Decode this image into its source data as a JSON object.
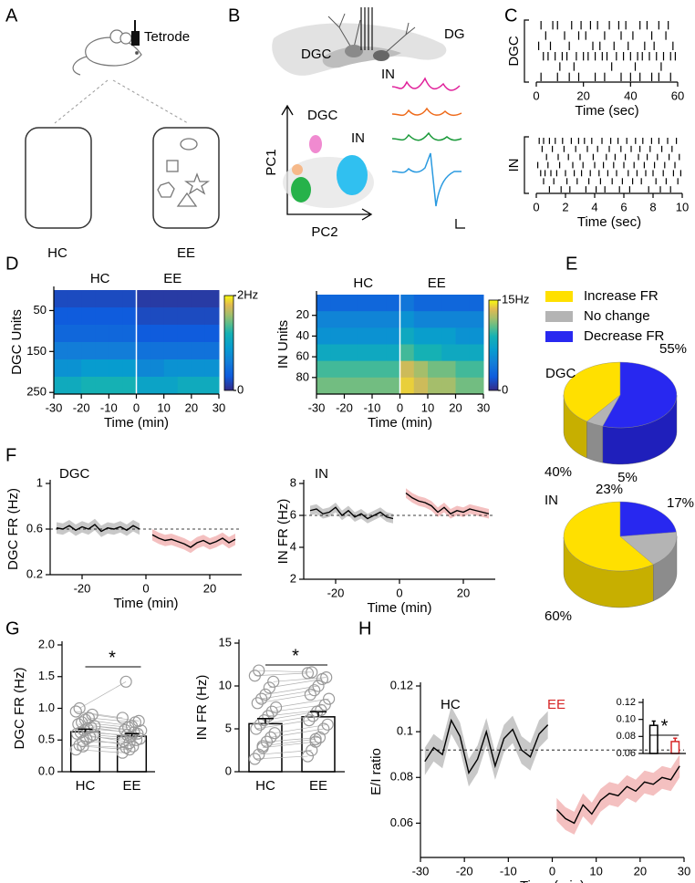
{
  "panel_labels": [
    "A",
    "B",
    "C",
    "D",
    "E",
    "F",
    "G",
    "H"
  ],
  "diagram_a": {
    "device": "Tetrode",
    "conditions": [
      "HC",
      "EE"
    ]
  },
  "diagram_b": {
    "regions": [
      "DGC",
      "DG",
      "IN"
    ],
    "clusters": [
      "DGC",
      "IN"
    ],
    "xlabel": "PC2",
    "ylabel": "PC1"
  },
  "chart_data": [
    {
      "type": "raster",
      "ylabel": "DGC",
      "xlabel": "Time (sec)",
      "xlim": [
        0,
        60
      ],
      "xticks": [
        0,
        20,
        40,
        60
      ],
      "color": "#000000",
      "rows": [
        [
          2,
          7,
          9,
          15,
          19,
          23,
          26,
          31,
          35,
          38,
          44,
          47,
          52,
          56
        ],
        [
          4,
          12,
          18,
          21,
          29,
          36,
          41,
          49,
          55
        ],
        [
          1,
          6,
          14,
          24,
          27,
          33,
          39,
          46,
          50,
          58
        ],
        [
          3,
          5,
          8,
          11,
          13,
          17,
          20,
          22,
          25,
          28,
          30,
          34,
          37,
          40,
          43,
          45,
          48,
          51,
          54,
          57,
          59
        ],
        [
          10,
          16,
          32,
          42,
          53
        ],
        [
          2,
          9,
          14,
          18,
          25,
          29,
          36,
          40,
          44,
          49,
          52,
          57
        ]
      ]
    },
    {
      "type": "raster",
      "ylabel": "IN",
      "xlabel": "Time (sec)",
      "xlim": [
        0,
        10
      ],
      "xticks": [
        0,
        2,
        4,
        6,
        8,
        10
      ],
      "color": "#000000",
      "rows": [
        [
          0.2,
          0.5,
          0.9,
          1.3,
          1.8,
          2.4,
          2.9,
          3.3,
          3.8,
          4.5,
          5.1,
          5.6,
          6.2,
          6.8,
          7.3,
          7.9,
          8.4,
          9.0,
          9.6
        ],
        [
          0.4,
          1.1,
          1.9,
          2.7,
          3.5,
          4.2,
          5.0,
          5.8,
          6.5,
          7.1,
          7.8,
          8.6,
          9.3
        ],
        [
          0.7,
          1.5,
          2.2,
          3.0,
          3.9,
          4.8,
          5.4,
          6.1,
          7.0,
          7.6,
          8.3,
          9.1,
          9.8
        ],
        [
          0.1,
          0.8,
          1.6,
          2.5,
          3.2,
          4.0,
          4.6,
          5.3,
          6.0,
          6.7,
          7.4,
          8.1,
          8.8,
          9.5
        ],
        [
          0.3,
          0.6,
          1.0,
          1.4,
          2.0,
          2.6,
          3.1,
          3.7,
          4.3,
          4.9,
          5.5,
          6.3,
          6.9,
          7.5,
          8.0,
          8.7,
          9.4,
          9.9
        ],
        [
          0.5,
          1.2,
          2.1,
          2.8,
          3.6,
          4.4,
          5.2,
          5.9,
          6.6,
          7.2,
          8.2,
          8.9,
          9.7
        ],
        [
          0.9,
          1.7,
          2.3,
          3.4,
          4.1,
          4.7,
          5.7,
          6.4,
          7.7,
          8.5,
          9.2
        ]
      ]
    },
    {
      "type": "heatmap",
      "columns": [
        "HC",
        "EE"
      ],
      "xlabel": "Time (min)",
      "ylabel": "DGC Units",
      "xlim": [
        -30,
        30
      ],
      "xticks": [
        -30,
        -20,
        -10,
        0,
        10,
        20,
        30
      ],
      "ylim": [
        254,
        0
      ],
      "yticks": [
        50,
        150,
        250
      ],
      "zlim": [
        0,
        2
      ],
      "zticks": [
        0,
        {
          "value": 2,
          "label": "2Hz"
        }
      ],
      "values": [
        [
          0.2,
          0.2,
          0.2,
          0.2,
          0.2,
          0.2,
          0.1,
          0.1,
          0.1,
          0.1,
          0.1,
          0.1
        ],
        [
          0.3,
          0.3,
          0.3,
          0.3,
          0.3,
          0.3,
          0.2,
          0.2,
          0.2,
          0.2,
          0.2,
          0.2
        ],
        [
          0.4,
          0.4,
          0.4,
          0.4,
          0.4,
          0.4,
          0.3,
          0.3,
          0.3,
          0.3,
          0.3,
          0.3
        ],
        [
          0.6,
          0.6,
          0.6,
          0.6,
          0.6,
          0.6,
          0.5,
          0.5,
          0.5,
          0.5,
          0.5,
          0.5
        ],
        [
          0.8,
          0.8,
          0.9,
          0.9,
          0.9,
          0.9,
          0.7,
          0.7,
          0.8,
          0.8,
          0.8,
          0.8
        ],
        [
          1.1,
          1.1,
          1.2,
          1.2,
          1.2,
          1.2,
          1.0,
          1.0,
          1.0,
          1.1,
          1.1,
          1.1
        ]
      ]
    },
    {
      "type": "heatmap",
      "columns": [
        "HC",
        "EE"
      ],
      "xlabel": "Time (min)",
      "ylabel": "IN Units",
      "xlim": [
        -30,
        30
      ],
      "xticks": [
        -30,
        -20,
        -10,
        0,
        10,
        20,
        30
      ],
      "ylim": [
        96,
        0
      ],
      "yticks": [
        20,
        40,
        60,
        80
      ],
      "zlim": [
        0,
        15
      ],
      "zticks": [
        0,
        {
          "value": 15,
          "label": "15Hz"
        }
      ],
      "values": [
        [
          3,
          3,
          3,
          3,
          3,
          3,
          4,
          3,
          3,
          3,
          3,
          3
        ],
        [
          5,
          5,
          5,
          5,
          5,
          5,
          6,
          5,
          5,
          5,
          5,
          5
        ],
        [
          6,
          6,
          6,
          6,
          6,
          6,
          8,
          7,
          7,
          7,
          6,
          6
        ],
        [
          8,
          8,
          8,
          8,
          8,
          8,
          10,
          9,
          9,
          8,
          8,
          8
        ],
        [
          10,
          10,
          10,
          10,
          10,
          10,
          13,
          12,
          11,
          11,
          10,
          10
        ],
        [
          11,
          11,
          11,
          11,
          11,
          11,
          14,
          13,
          12,
          12,
          11,
          11
        ]
      ]
    },
    {
      "type": "pie",
      "title": "DGC",
      "categories": [
        "Increase FR",
        "No change",
        "Decrease FR"
      ],
      "colors": [
        "#ffe000",
        "#b4b4b4",
        "#2828f0"
      ],
      "values": [
        40,
        5,
        55
      ],
      "value_labels": [
        "40%",
        "5%",
        "55%"
      ]
    },
    {
      "type": "pie",
      "title": "IN",
      "colors": [
        "#ffe000",
        "#b4b4b4",
        "#2828f0"
      ],
      "values": [
        60,
        17,
        23
      ],
      "value_labels": [
        "60%",
        "17%",
        "23%"
      ]
    },
    {
      "type": "line",
      "annotation": "DGC",
      "xlabel": "Time (min)",
      "ylabel": "DGC FR (Hz)",
      "xlim": [
        -30,
        30
      ],
      "xticks": [
        -20,
        0,
        20
      ],
      "ylim": [
        0.2,
        1
      ],
      "yticks": [
        0.2,
        0.6,
        1
      ],
      "reference": 0.6,
      "series": [
        {
          "color": "#000000",
          "band_color": "#c8c8c8",
          "error": 0.05,
          "x": [
            -28,
            -26,
            -24,
            -22,
            -20,
            -18,
            -16,
            -14,
            -12,
            -10,
            -8,
            -6,
            -4,
            -2
          ],
          "values": [
            0.61,
            0.6,
            0.63,
            0.59,
            0.62,
            0.6,
            0.64,
            0.58,
            0.61,
            0.6,
            0.62,
            0.59,
            0.63,
            0.6
          ]
        },
        {
          "color": "#000000",
          "band_color": "#f4c0c0",
          "error": 0.05,
          "x": [
            2,
            4,
            6,
            8,
            10,
            12,
            14,
            16,
            18,
            20,
            22,
            24,
            26,
            28
          ],
          "values": [
            0.55,
            0.52,
            0.5,
            0.51,
            0.49,
            0.47,
            0.44,
            0.48,
            0.5,
            0.47,
            0.49,
            0.52,
            0.48,
            0.51
          ]
        }
      ]
    },
    {
      "type": "line",
      "annotation": "IN",
      "xlabel": "Time (min)",
      "ylabel": "IN FR (Hz)",
      "xlim": [
        -30,
        30
      ],
      "xticks": [
        -20,
        0,
        20
      ],
      "ylim": [
        2,
        8
      ],
      "yticks": [
        2,
        4,
        6,
        8
      ],
      "reference": 6,
      "series": [
        {
          "color": "#000000",
          "band_color": "#c8c8c8",
          "error": 0.3,
          "x": [
            -28,
            -26,
            -24,
            -22,
            -20,
            -18,
            -16,
            -14,
            -12,
            -10,
            -8,
            -6,
            -4,
            -2
          ],
          "values": [
            6.3,
            6.4,
            6.1,
            6.2,
            6.5,
            6.0,
            6.3,
            5.9,
            6.1,
            5.8,
            6.0,
            6.2,
            5.9,
            5.8
          ]
        },
        {
          "color": "#000000",
          "band_color": "#f4c0c0",
          "error": 0.3,
          "x": [
            2,
            4,
            6,
            8,
            10,
            12,
            14,
            16,
            18,
            20,
            22,
            24,
            26,
            28
          ],
          "values": [
            7.4,
            7.1,
            6.9,
            6.8,
            6.6,
            6.2,
            6.5,
            6.1,
            6.3,
            6.2,
            6.4,
            6.3,
            6.2,
            6.1
          ]
        }
      ]
    },
    {
      "type": "bar",
      "ylabel": "DGC FR (Hz)",
      "categories": [
        "HC",
        "EE"
      ],
      "values": [
        0.63,
        0.56
      ],
      "errors": [
        0.04,
        0.04
      ],
      "annotation": "*",
      "ylim": [
        0,
        2
      ],
      "yticks": [
        {
          "value": 0,
          "label": "0.0"
        },
        0.5,
        {
          "value": 1,
          "label": "1.0"
        },
        1.5,
        {
          "value": 2,
          "label": "2.0"
        }
      ],
      "points": [
        [
          0.35,
          0.42,
          0.48,
          0.52,
          0.55,
          0.58,
          0.6,
          0.62,
          0.65,
          0.68,
          0.7,
          0.72,
          0.75,
          0.78,
          0.82,
          0.85,
          0.9,
          0.95,
          1.0,
          0.4
        ],
        [
          0.3,
          0.38,
          0.45,
          0.4,
          0.5,
          0.52,
          0.48,
          0.58,
          0.55,
          0.62,
          0.6,
          0.65,
          0.66,
          0.7,
          0.72,
          0.78,
          0.8,
          0.85,
          1.42,
          0.35
        ]
      ]
    },
    {
      "type": "bar",
      "ylabel": "IN FR (Hz)",
      "categories": [
        "HC",
        "EE"
      ],
      "values": [
        5.6,
        6.4
      ],
      "errors": [
        0.6,
        0.6
      ],
      "annotation": "*",
      "ylim": [
        0,
        15
      ],
      "yticks": [
        0,
        5,
        10,
        15
      ],
      "points": [
        [
          1.5,
          2.0,
          2.8,
          3.5,
          4.0,
          4.5,
          5.0,
          5.5,
          6.0,
          6.5,
          7.0,
          7.5,
          8.0,
          8.5,
          9.0,
          9.8,
          10.5,
          11.2,
          11.8,
          3.0
        ],
        [
          1.8,
          2.5,
          3.5,
          4.0,
          5.0,
          5.5,
          6.0,
          6.5,
          7.0,
          7.2,
          7.8,
          8.5,
          9.0,
          9.5,
          10.0,
          10.8,
          11.0,
          11.5,
          11.6,
          3.8
        ]
      ]
    },
    {
      "type": "line",
      "annotations": [
        "HC",
        "EE"
      ],
      "annotation_colors": [
        "#000000",
        "#d62728"
      ],
      "xlabel": "Time (min)",
      "ylabel": "E/I ratio",
      "xlim": [
        -30,
        30
      ],
      "xticks": [
        -30,
        -20,
        -10,
        0,
        10,
        20,
        30
      ],
      "ylim": [
        0.045,
        0.12
      ],
      "yticks": [
        0.06,
        0.08,
        0.1,
        0.12
      ],
      "reference": 0.092,
      "series": [
        {
          "color": "#000000",
          "band_color": "#c8c8c8",
          "error": 0.006,
          "x": [
            -29,
            -27,
            -25,
            -23,
            -21,
            -19,
            -17,
            -15,
            -13,
            -11,
            -9,
            -7,
            -5,
            -3,
            -1
          ],
          "values": [
            0.087,
            0.093,
            0.09,
            0.105,
            0.098,
            0.082,
            0.088,
            0.1,
            0.085,
            0.097,
            0.101,
            0.092,
            0.089,
            0.099,
            0.103
          ]
        },
        {
          "color": "#000000",
          "band_color": "#f4c0c0",
          "error": 0.005,
          "x": [
            1,
            3,
            5,
            7,
            9,
            11,
            13,
            15,
            17,
            19,
            21,
            23,
            25,
            27,
            29
          ],
          "values": [
            0.066,
            0.062,
            0.06,
            0.068,
            0.064,
            0.07,
            0.073,
            0.072,
            0.076,
            0.074,
            0.078,
            0.077,
            0.08,
            0.079,
            0.085
          ]
        }
      ]
    },
    {
      "type": "bar",
      "values": [
        0.093,
        0.074
      ],
      "errors": [
        0.005,
        0.004
      ],
      "colors": [
        "#000000",
        "#d62728"
      ],
      "annotation": "*",
      "ylim": [
        0.06,
        0.12
      ],
      "yticks": [
        0.06,
        0.08,
        {
          "value": 0.1,
          "label": "0.10"
        },
        0.12
      ]
    }
  ]
}
